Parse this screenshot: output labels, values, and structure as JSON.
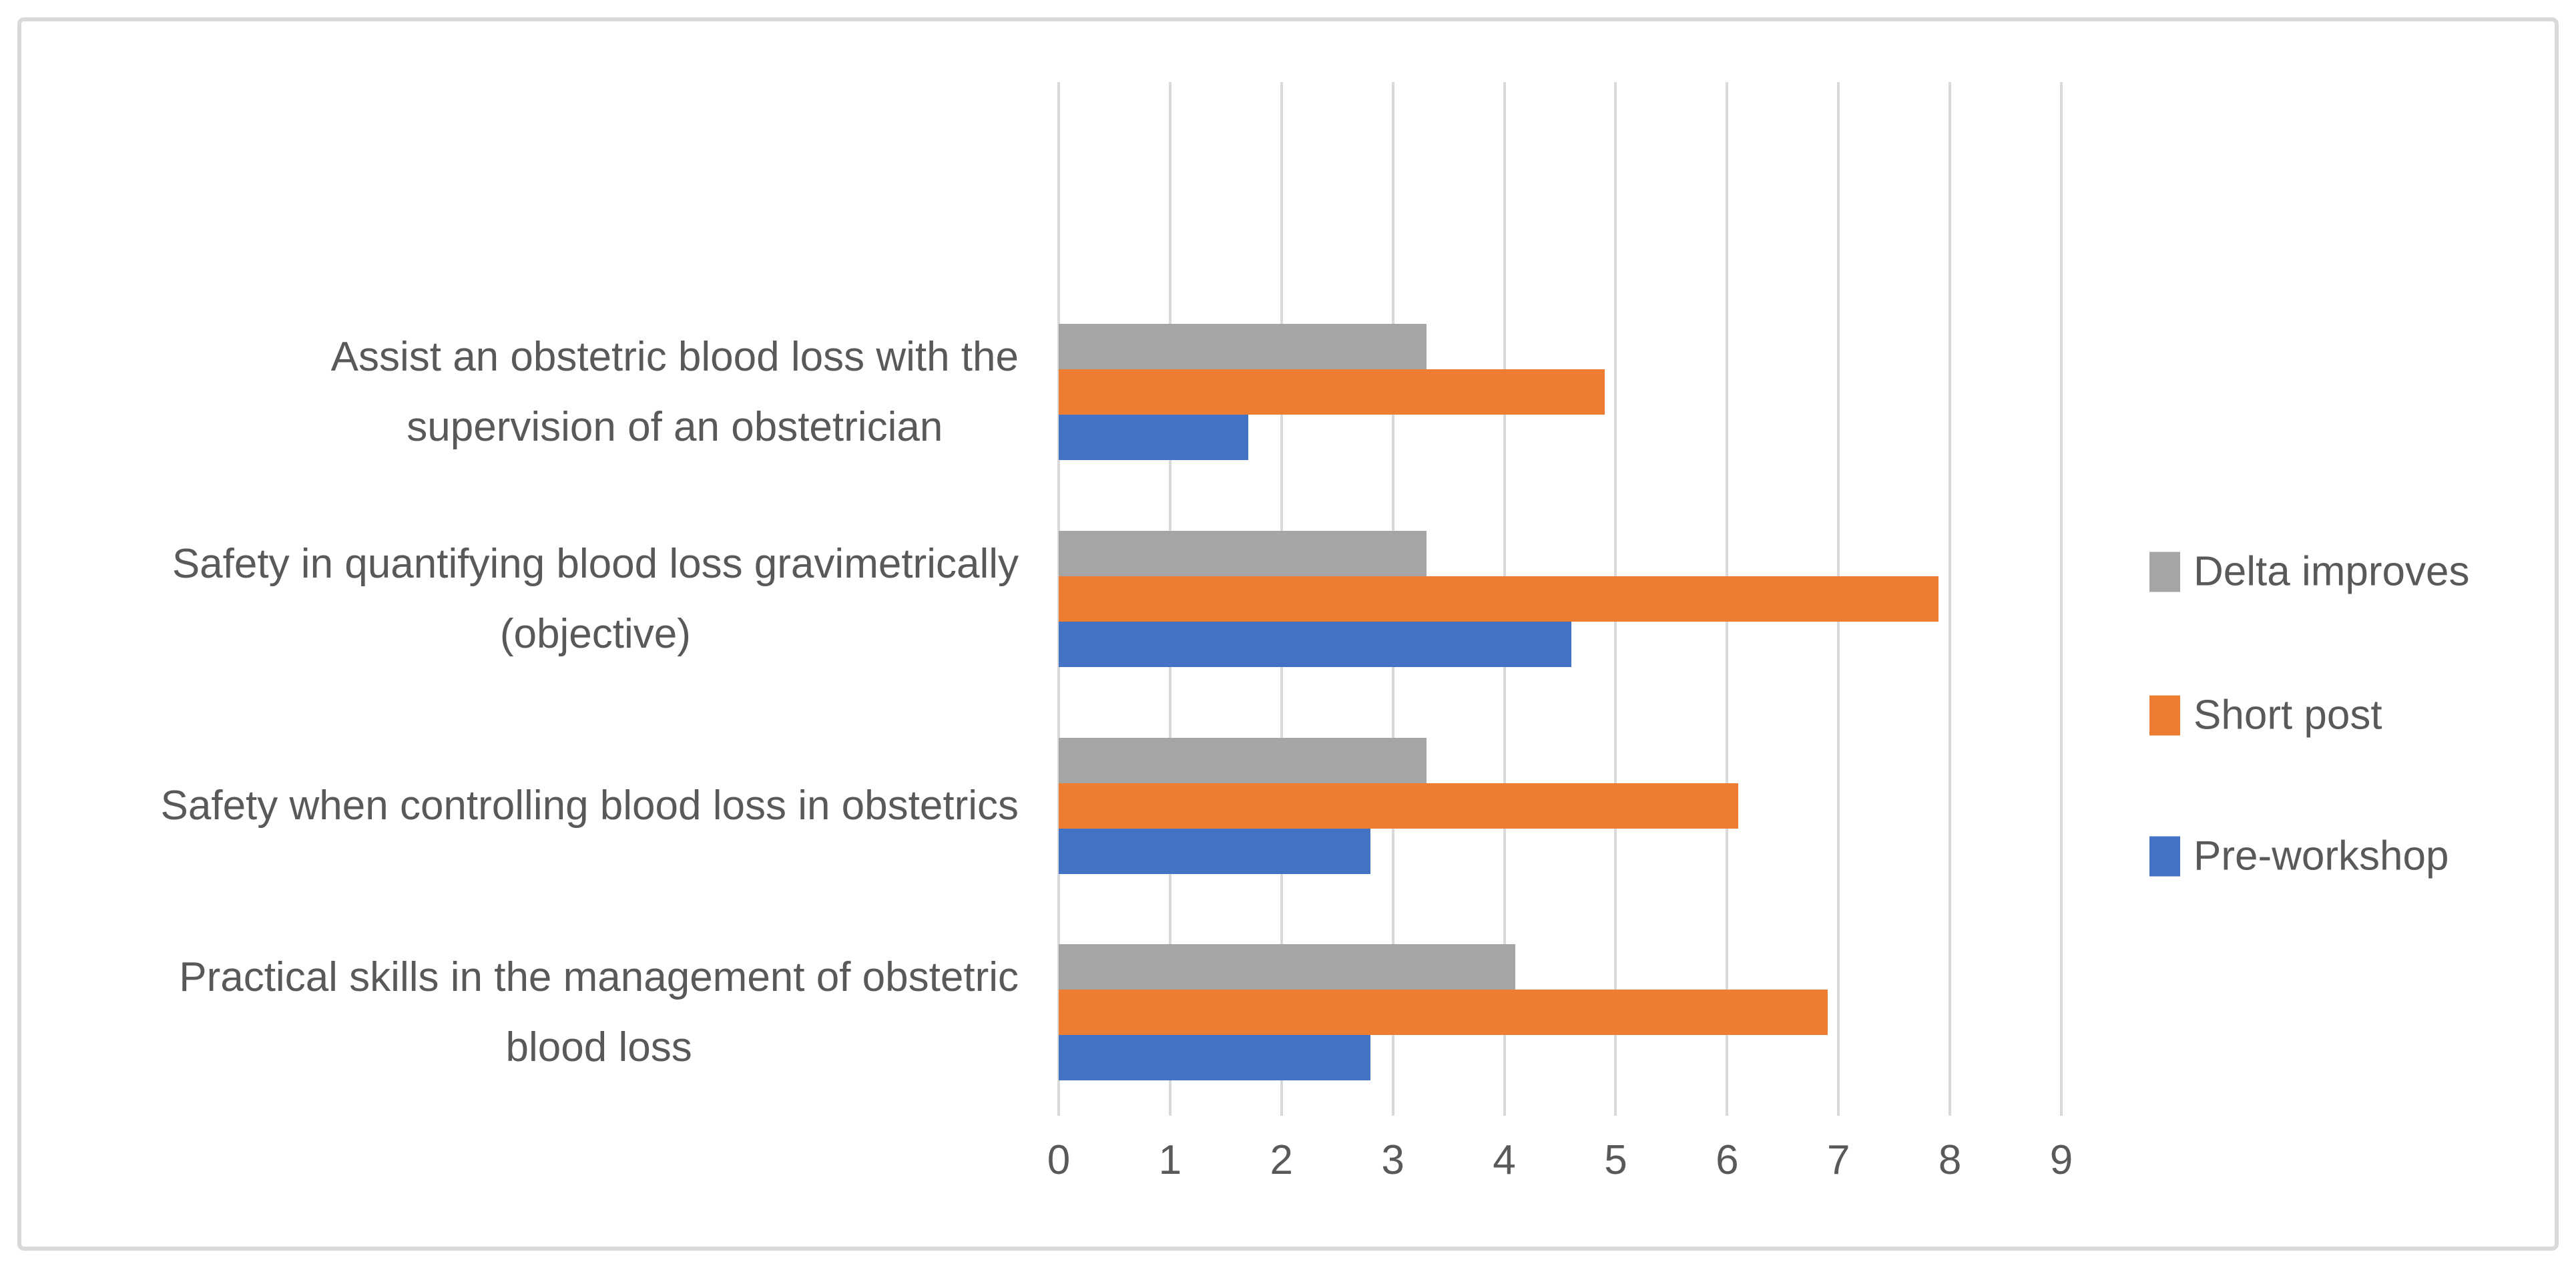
{
  "figure": {
    "background": "#ffffff",
    "frame_border_color": "#d9d9d9"
  },
  "chart_data": {
    "type": "bar",
    "orientation": "horizontal",
    "title": "",
    "xlabel": "",
    "ylabel": "",
    "grid": "vertical",
    "gridline_color": "#d9d9d9",
    "text_color": "#595959",
    "empty_top_band": true,
    "categories": [
      {
        "label": "Assist an obstetric blood loss with the supervision of an obstetrician",
        "lines": [
          "Assist an obstetric blood loss with the",
          "supervision of an obstetrician"
        ]
      },
      {
        "label": "Safety in quantifying blood loss gravimetrically (objective)",
        "lines": [
          "Safety in quantifying blood loss gravimetrically",
          "(objective)"
        ]
      },
      {
        "label": "Safety when controlling blood loss in obstetrics",
        "lines": [
          "Safety when controlling blood loss in obstetrics"
        ]
      },
      {
        "label": "Practical skills in the management of obstetric blood loss",
        "lines": [
          "Practical skills in the management of obstetric",
          "blood loss"
        ]
      }
    ],
    "series": [
      {
        "name": "Delta improves",
        "color": "#a5a5a5",
        "values": [
          3.3,
          3.3,
          3.3,
          4.1
        ]
      },
      {
        "name": "Short post",
        "color": "#ed7d31",
        "values": [
          4.9,
          7.9,
          6.1,
          6.9
        ]
      },
      {
        "name": "Pre-workshop",
        "color": "#4472c4",
        "values": [
          1.7,
          4.6,
          2.8,
          2.8
        ]
      }
    ],
    "x_axis": {
      "min": 0,
      "max": 9,
      "ticks": [
        "0",
        "1",
        "2",
        "3",
        "4",
        "5",
        "6",
        "7",
        "8",
        "9"
      ]
    },
    "legend": {
      "position": "right",
      "items": [
        "Delta improves",
        "Short post",
        "Pre-workshop"
      ]
    }
  }
}
